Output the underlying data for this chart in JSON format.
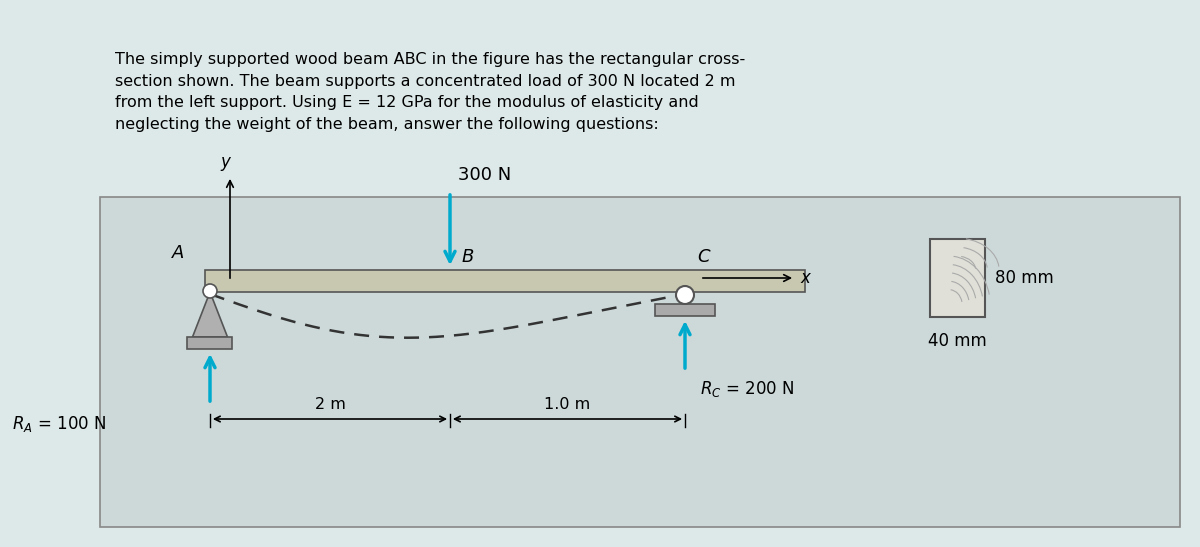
{
  "bg_color": "#dde8e8",
  "fig_bg": "#c8d8d8",
  "text_paragraph": "The simply supported wood beam ABC in the figure has the rectangular cross-\nsection shown. The beam supports a concentrated load of 300 N located 2 m\nfrom the left support. Using E = 12 GPa for the modulus of elasticity and\nneglecting the weight of the beam, answer the following questions:",
  "beam_color": "#c8c8b0",
  "beam_edge_color": "#555555",
  "support_color": "#aaaaaa",
  "support_edge": "#555555",
  "arrow_color": "#00aacc",
  "dashed_color": "#333333",
  "load_value": "300 N",
  "ra_label": "$R_A$ = 100 N",
  "rc_label": "$R_C$ = 200 N",
  "dim_2m": "2 m",
  "dim_1m": "1.0 m",
  "label_A": "A",
  "label_B": "B",
  "label_C": "C",
  "label_x": "x",
  "label_y": "y",
  "label_80mm": "80 mm",
  "label_40mm": "40 mm",
  "wood_rect_color": "#e0e0d8",
  "wood_rect_edge": "#555555"
}
